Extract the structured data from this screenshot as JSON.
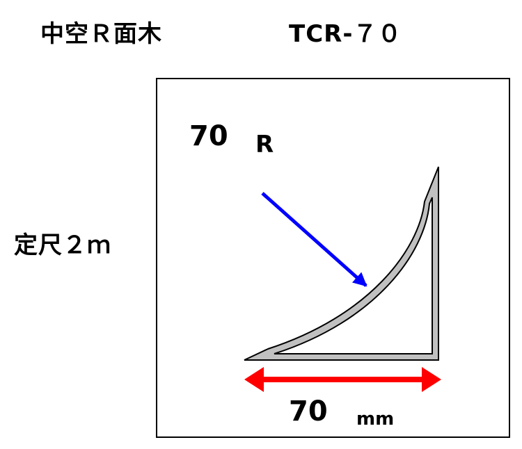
{
  "title": {
    "name": "中空Ｒ面木",
    "model": "TCR-７０"
  },
  "length_label": "定尺２ｍ",
  "radius": {
    "value": "70",
    "unit": "R"
  },
  "width": {
    "value": "70",
    "unit": "mm"
  },
  "colors": {
    "radius_arrow": "#0000ff",
    "width_arrow": "#ff0000",
    "profile_fill": "#c0c0c0",
    "outline": "#000000"
  }
}
